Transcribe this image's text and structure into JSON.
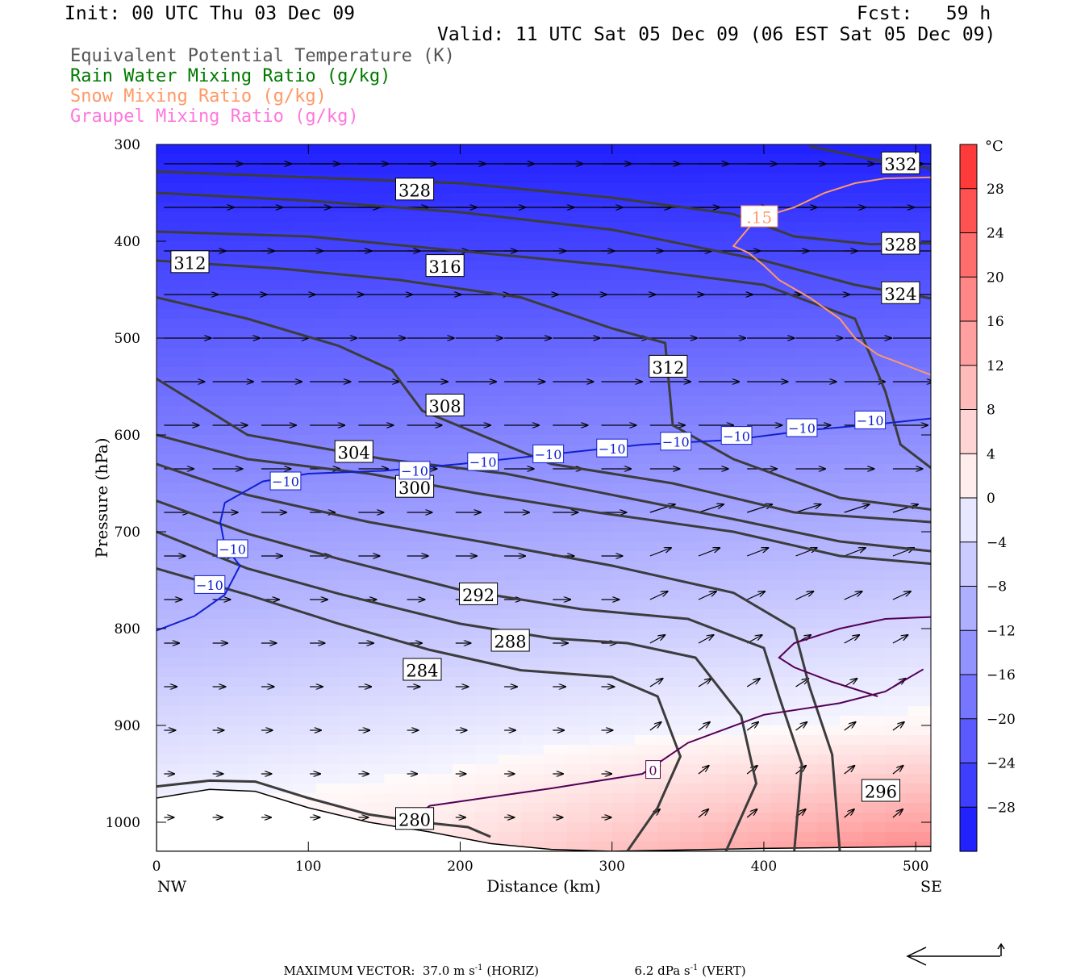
{
  "header": {
    "init": "Init: 00 UTC Thu 03 Dec 09",
    "fcst": "Fcst:   59 h",
    "valid": "Valid: 11 UTC Sat 05 Dec 09 (06 EST Sat 05 Dec 09)"
  },
  "legend": [
    {
      "label": "Equivalent Potential Temperature (K)",
      "color": "#555555"
    },
    {
      "label": "Rain Water Mixing Ratio (g/kg)",
      "color": "#007a00"
    },
    {
      "label": "Snow Mixing Ratio (g/kg)",
      "color": "#ff9966"
    },
    {
      "label": "Graupel Mixing Ratio (g/kg)",
      "color": "#ff77dd"
    }
  ],
  "footer": {
    "max_vector": "MAXIMUM VECTOR:  37.0 m s",
    "horiz": "(HORIZ)",
    "vert_value": "6.2 dPa s",
    "vert": "(VERT)",
    "exp": "-1"
  },
  "chart_data": {
    "type": "cross-section contour",
    "xlabel": "Distance (km)",
    "ylabel": "Pressure (hPa)",
    "xlim": [
      0,
      510
    ],
    "ylim": [
      1030,
      300
    ],
    "x_ticks": [
      0,
      100,
      200,
      300,
      400,
      500
    ],
    "y_ticks": [
      300,
      400,
      500,
      600,
      700,
      800,
      900,
      1000
    ],
    "x_end_labels": {
      "left": "NW",
      "right": "SE"
    },
    "colorbar": {
      "unit": "°C",
      "ticks": [
        28,
        24,
        20,
        16,
        12,
        8,
        4,
        0,
        -4,
        -8,
        -12,
        -16,
        -20,
        -24,
        -28
      ],
      "tick_labels": [
        "28",
        "24",
        "20",
        "16",
        "12",
        "8",
        "4",
        "0",
        "−4",
        "−8",
        "−12",
        "−16",
        "−20",
        "−24",
        "−28"
      ],
      "range": [
        -32,
        32
      ],
      "interval": 4
    },
    "theta_e_contours": [
      {
        "value": 280,
        "label": "280",
        "points": [
          [
            0,
            963
          ],
          [
            35,
            957
          ],
          [
            65,
            958
          ],
          [
            100,
            975
          ],
          [
            140,
            992
          ],
          [
            175,
            1000
          ],
          [
            205,
            1005
          ],
          [
            220,
            1015
          ]
        ],
        "label_at": [
          170,
          997
        ]
      },
      {
        "value": 284,
        "label": "284",
        "points": [
          [
            0,
            738
          ],
          [
            60,
            765
          ],
          [
            120,
            795
          ],
          [
            180,
            822
          ],
          [
            240,
            843
          ],
          [
            300,
            850
          ],
          [
            330,
            870
          ],
          [
            345,
            932
          ],
          [
            330,
            985
          ],
          [
            310,
            1030
          ]
        ],
        "label_at": [
          175,
          843
        ]
      },
      {
        "value": 288,
        "label": "288",
        "points": [
          [
            0,
            700
          ],
          [
            60,
            738
          ],
          [
            120,
            764
          ],
          [
            200,
            795
          ],
          [
            260,
            810
          ],
          [
            310,
            815
          ],
          [
            355,
            830
          ],
          [
            385,
            890
          ],
          [
            395,
            960
          ],
          [
            375,
            1030
          ]
        ],
        "label_at": [
          233,
          813
        ]
      },
      {
        "value": 292,
        "label": "292",
        "points": [
          [
            0,
            668
          ],
          [
            60,
            702
          ],
          [
            120,
            728
          ],
          [
            200,
            760
          ],
          [
            280,
            780
          ],
          [
            350,
            790
          ],
          [
            400,
            820
          ],
          [
            410,
            870
          ],
          [
            425,
            940
          ],
          [
            420,
            1030
          ]
        ],
        "label_at": [
          212,
          765
        ]
      },
      {
        "value": 296,
        "label": "296",
        "points": [
          [
            0,
            630
          ],
          [
            60,
            662
          ],
          [
            140,
            690
          ],
          [
            220,
            712
          ],
          [
            300,
            735
          ],
          [
            380,
            763
          ],
          [
            420,
            800
          ],
          [
            430,
            860
          ],
          [
            445,
            930
          ],
          [
            450,
            1030
          ]
        ],
        "label_at": [
          477,
          968
        ]
      },
      {
        "value": 300,
        "label": "300",
        "points": [
          [
            0,
            600
          ],
          [
            60,
            625
          ],
          [
            140,
            640
          ],
          [
            210,
            660
          ],
          [
            290,
            680
          ],
          [
            380,
            700
          ],
          [
            450,
            725
          ],
          [
            510,
            733
          ]
        ],
        "label_at": [
          170,
          654
        ]
      },
      {
        "value": 304,
        "label": "304",
        "points": [
          [
            0,
            542
          ],
          [
            60,
            600
          ],
          [
            150,
            625
          ],
          [
            230,
            640
          ],
          [
            310,
            665
          ],
          [
            380,
            687
          ],
          [
            450,
            710
          ],
          [
            510,
            720
          ]
        ],
        "label_at": [
          130,
          618
        ]
      },
      {
        "value": 308,
        "label": "308",
        "points": [
          [
            0,
            458
          ],
          [
            60,
            480
          ],
          [
            120,
            508
          ],
          [
            155,
            533
          ],
          [
            175,
            575
          ],
          [
            260,
            630
          ],
          [
            340,
            650
          ],
          [
            420,
            680
          ],
          [
            510,
            690
          ]
        ],
        "label_at": [
          190,
          570
        ]
      },
      {
        "value": 312,
        "label": "312",
        "points": [
          [
            0,
            420
          ],
          [
            80,
            428
          ],
          [
            160,
            440
          ],
          [
            240,
            458
          ],
          [
            300,
            490
          ],
          [
            335,
            505
          ],
          [
            340,
            590
          ],
          [
            380,
            625
          ],
          [
            450,
            665
          ],
          [
            510,
            677
          ]
        ],
        "label_at": [
          337,
          530
        ]
      },
      {
        "value": 316,
        "label": "316",
        "points": [
          [
            0,
            390
          ],
          [
            100,
            395
          ],
          [
            200,
            410
          ],
          [
            300,
            425
          ],
          [
            400,
            445
          ],
          [
            460,
            480
          ],
          [
            480,
            555
          ],
          [
            490,
            610
          ],
          [
            510,
            634
          ]
        ],
        "label_at": [
          190,
          426
        ]
      },
      {
        "value": 324,
        "label": "324",
        "points": [
          [
            0,
            350
          ],
          [
            100,
            358
          ],
          [
            200,
            370
          ],
          [
            300,
            388
          ],
          [
            400,
            420
          ],
          [
            460,
            445
          ],
          [
            510,
            459
          ]
        ],
        "label_at": [
          490,
          454
        ]
      },
      {
        "value": 328,
        "label": "328",
        "points": [
          [
            0,
            328
          ],
          [
            100,
            334
          ],
          [
            200,
            340
          ],
          [
            300,
            355
          ],
          [
            380,
            372
          ],
          [
            420,
            395
          ],
          [
            470,
            403
          ],
          [
            510,
            402
          ]
        ],
        "label_at": [
          170,
          347
        ]
      },
      {
        "value": 332,
        "label": "332",
        "points": [
          [
            430,
            302
          ],
          [
            470,
            315
          ],
          [
            510,
            325
          ]
        ],
        "label_at": [
          490,
          320
        ]
      }
    ],
    "theta_e_extra_labels": [
      {
        "label": "312",
        "at": [
          22,
          422
        ]
      },
      {
        "label": "328",
        "at": [
          490,
          403
        ]
      }
    ],
    "temperature_contours": [
      {
        "value": -10,
        "color": "#1020d0",
        "points": [
          [
            0,
            802
          ],
          [
            25,
            787
          ],
          [
            45,
            765
          ],
          [
            55,
            735
          ],
          [
            45,
            715
          ],
          [
            42,
            690
          ],
          [
            45,
            670
          ],
          [
            70,
            648
          ],
          [
            100,
            640
          ],
          [
            150,
            637
          ],
          [
            200,
            630
          ],
          [
            260,
            620
          ],
          [
            320,
            610
          ],
          [
            380,
            605
          ],
          [
            430,
            595
          ],
          [
            480,
            588
          ],
          [
            510,
            583
          ]
        ],
        "labels": [
          [
            85,
            648
          ],
          [
            50,
            718
          ],
          [
            35,
            755
          ],
          [
            170,
            637
          ],
          [
            215,
            628
          ],
          [
            258,
            620
          ],
          [
            300,
            614
          ],
          [
            342,
            607
          ],
          [
            382,
            601
          ],
          [
            425,
            593
          ],
          [
            470,
            585
          ]
        ]
      },
      {
        "value": 0,
        "color": "#550055",
        "points": [
          [
            165,
            1000
          ],
          [
            180,
            983
          ],
          [
            260,
            965
          ],
          [
            320,
            950
          ],
          [
            350,
            918
          ],
          [
            400,
            889
          ],
          [
            450,
            877
          ],
          [
            480,
            865
          ],
          [
            505,
            842
          ]
        ],
        "labels": [
          [
            327,
            946
          ]
        ]
      },
      {
        "value": 0,
        "color": "#550055",
        "points": [
          [
            475,
            870
          ],
          [
            445,
            855
          ],
          [
            420,
            840
          ],
          [
            410,
            830
          ],
          [
            420,
            815
          ],
          [
            450,
            800
          ],
          [
            480,
            790
          ],
          [
            510,
            788
          ]
        ]
      }
    ],
    "snow_contours": [
      {
        "value": 0.15,
        "label": ".15",
        "color": "#ff9966",
        "points": [
          [
            510,
            334
          ],
          [
            480,
            335
          ],
          [
            460,
            340
          ],
          [
            440,
            350
          ],
          [
            420,
            365
          ],
          [
            395,
            377
          ],
          [
            380,
            405
          ],
          [
            390,
            412
          ],
          [
            400,
            425
          ],
          [
            410,
            440
          ],
          [
            430,
            458
          ],
          [
            450,
            480
          ],
          [
            460,
            500
          ],
          [
            475,
            517
          ],
          [
            510,
            538
          ]
        ],
        "label_at": [
          397,
          375
        ]
      }
    ],
    "wind_vectors": "horizontal-vertical circulation vectors, max 37.0 m s-1 horizontal, 6.2 dPa s-1 vertical"
  }
}
